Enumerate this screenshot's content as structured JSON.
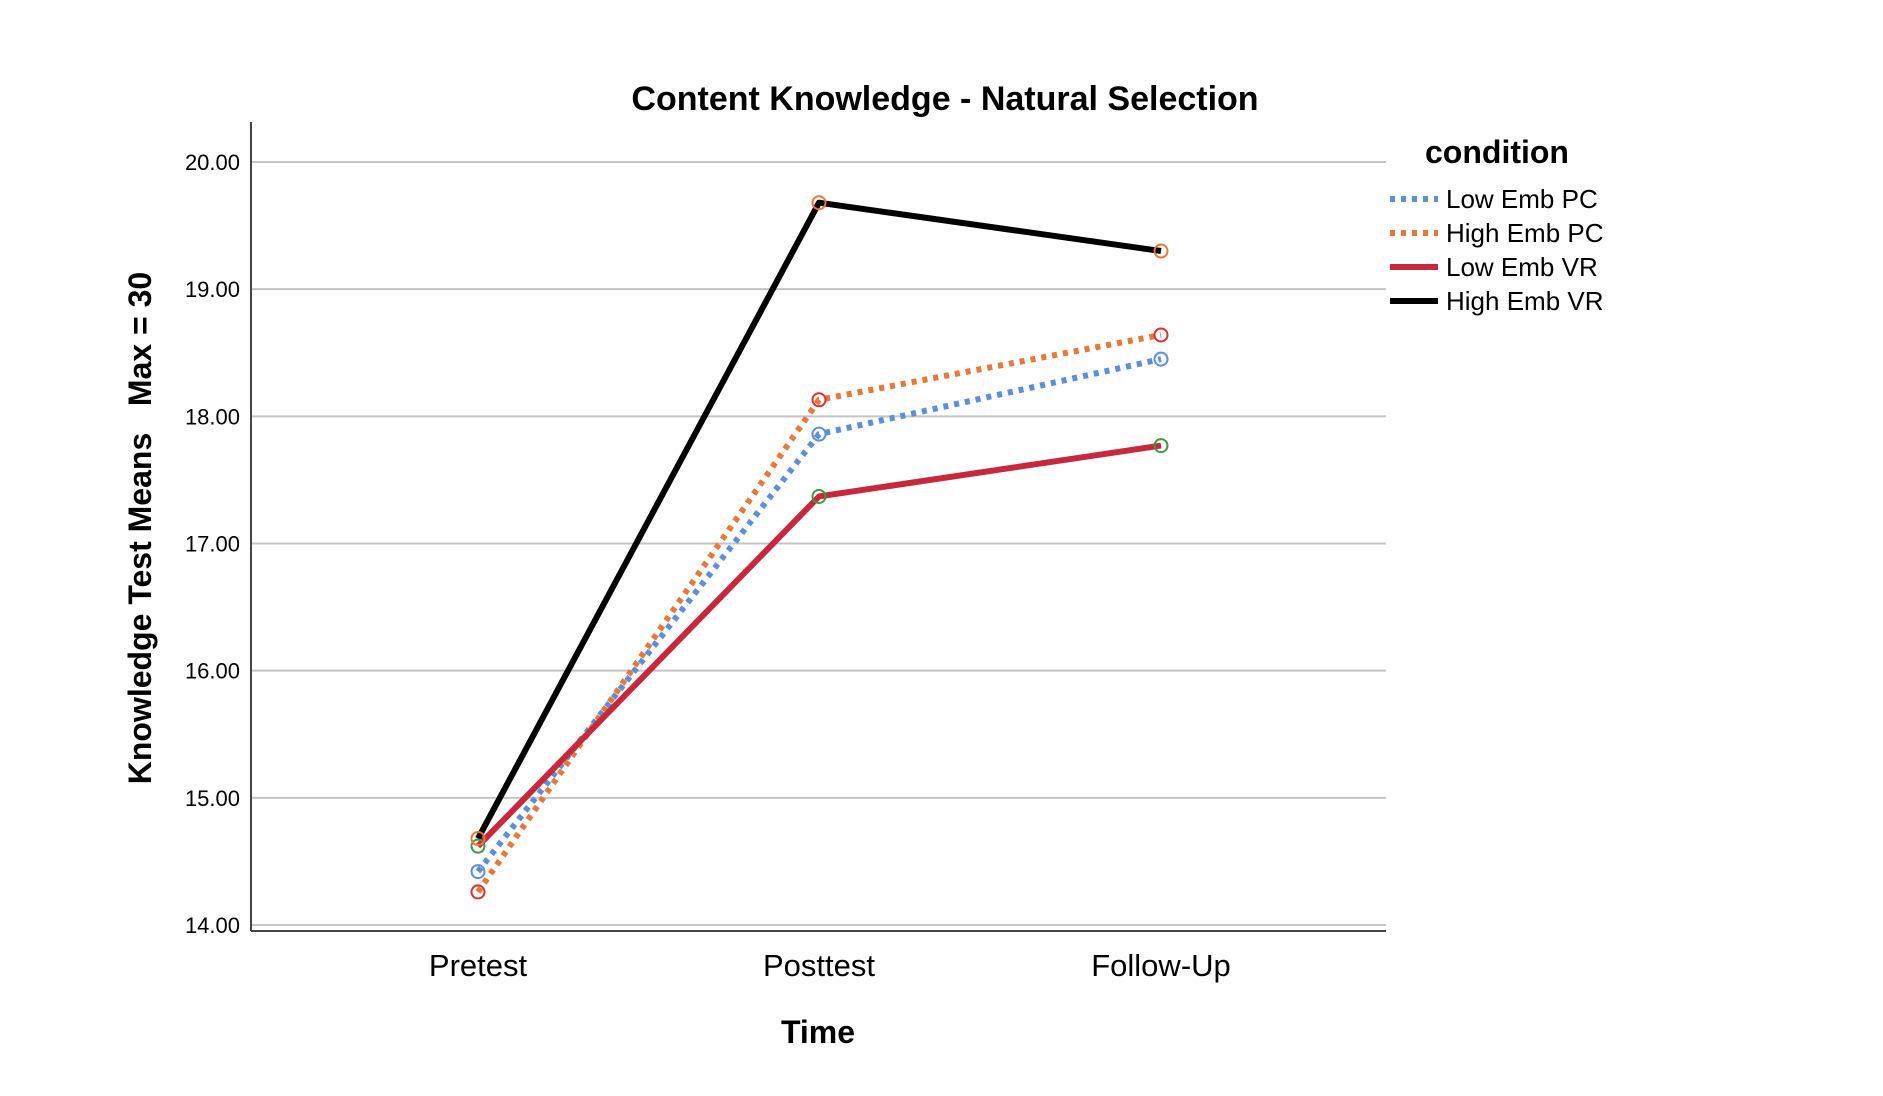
{
  "chart_data": {
    "type": "line",
    "title": "Content Knowledge - Natural Selection",
    "xlabel": "Time",
    "ylabel": "Knowledge Test Means   Max = 30",
    "categories": [
      "Pretest",
      "Posttest",
      "Follow-Up"
    ],
    "ylim": [
      14.0,
      20.3
    ],
    "yticks": [
      "14.00",
      "15.00",
      "16.00",
      "17.00",
      "18.00",
      "19.00",
      "20.00"
    ],
    "ytick_values": [
      14,
      15,
      16,
      17,
      18,
      19,
      20
    ],
    "grid": "horizontal",
    "legend": {
      "title": "condition",
      "position": "right"
    },
    "series": [
      {
        "name": "Low Emb PC",
        "values": [
          14.42,
          17.86,
          18.45
        ],
        "color": "#5b8fd8",
        "style": "dotted",
        "marker_color": "#5b8fd8"
      },
      {
        "name": "High Emb PC",
        "values": [
          14.26,
          18.13,
          18.64
        ],
        "color": "#e8773a",
        "style": "dotted",
        "marker_color": "#d9302f"
      },
      {
        "name": "Low Emb VR",
        "values": [
          14.62,
          17.37,
          17.77
        ],
        "color": "#c8283c",
        "style": "solid",
        "marker_color": "#3f9a3f"
      },
      {
        "name": "High Emb VR",
        "values": [
          14.68,
          19.68,
          19.3
        ],
        "color": "#000000",
        "style": "solid",
        "marker_color": "#e8773a"
      }
    ]
  }
}
